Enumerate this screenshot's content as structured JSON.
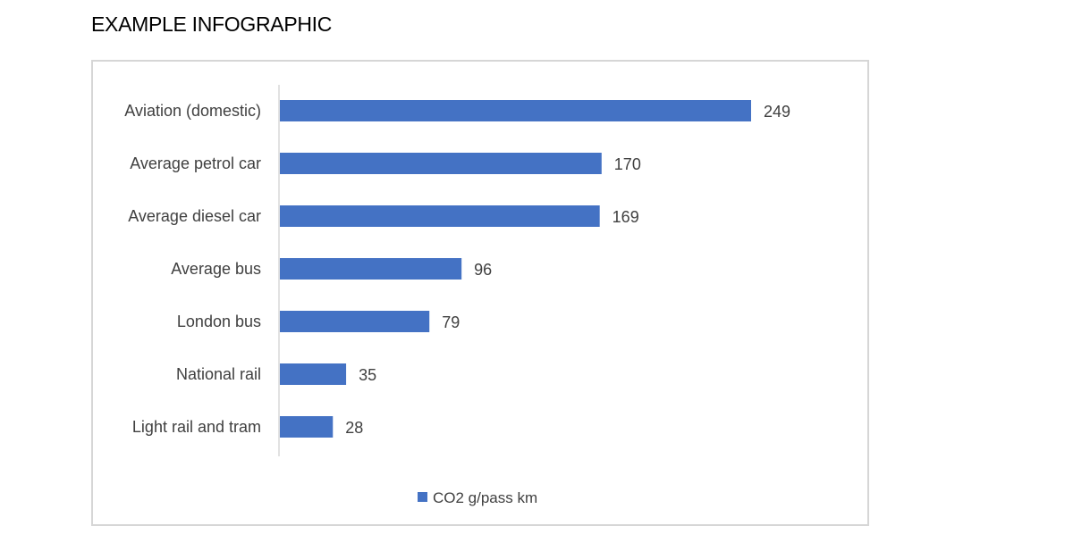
{
  "page": {
    "title": "EXAMPLE INFOGRAPHIC"
  },
  "chart_data": {
    "type": "bar",
    "orientation": "horizontal",
    "categories": [
      "Aviation (domestic)",
      "Average petrol car",
      "Average diesel car",
      "Average bus",
      "London bus",
      "National rail",
      "Light rail and tram"
    ],
    "series": [
      {
        "name": "CO2 g/pass km",
        "values": [
          249,
          170,
          169,
          96,
          79,
          35,
          28
        ],
        "color": "#4472c4"
      }
    ],
    "data_labels": [
      "249",
      "170",
      "169",
      "96",
      "79",
      "35",
      "28"
    ],
    "xlim": [
      0,
      249
    ],
    "title": "",
    "xlabel": "",
    "ylabel": "",
    "grid": false,
    "legend_position": "bottom"
  }
}
